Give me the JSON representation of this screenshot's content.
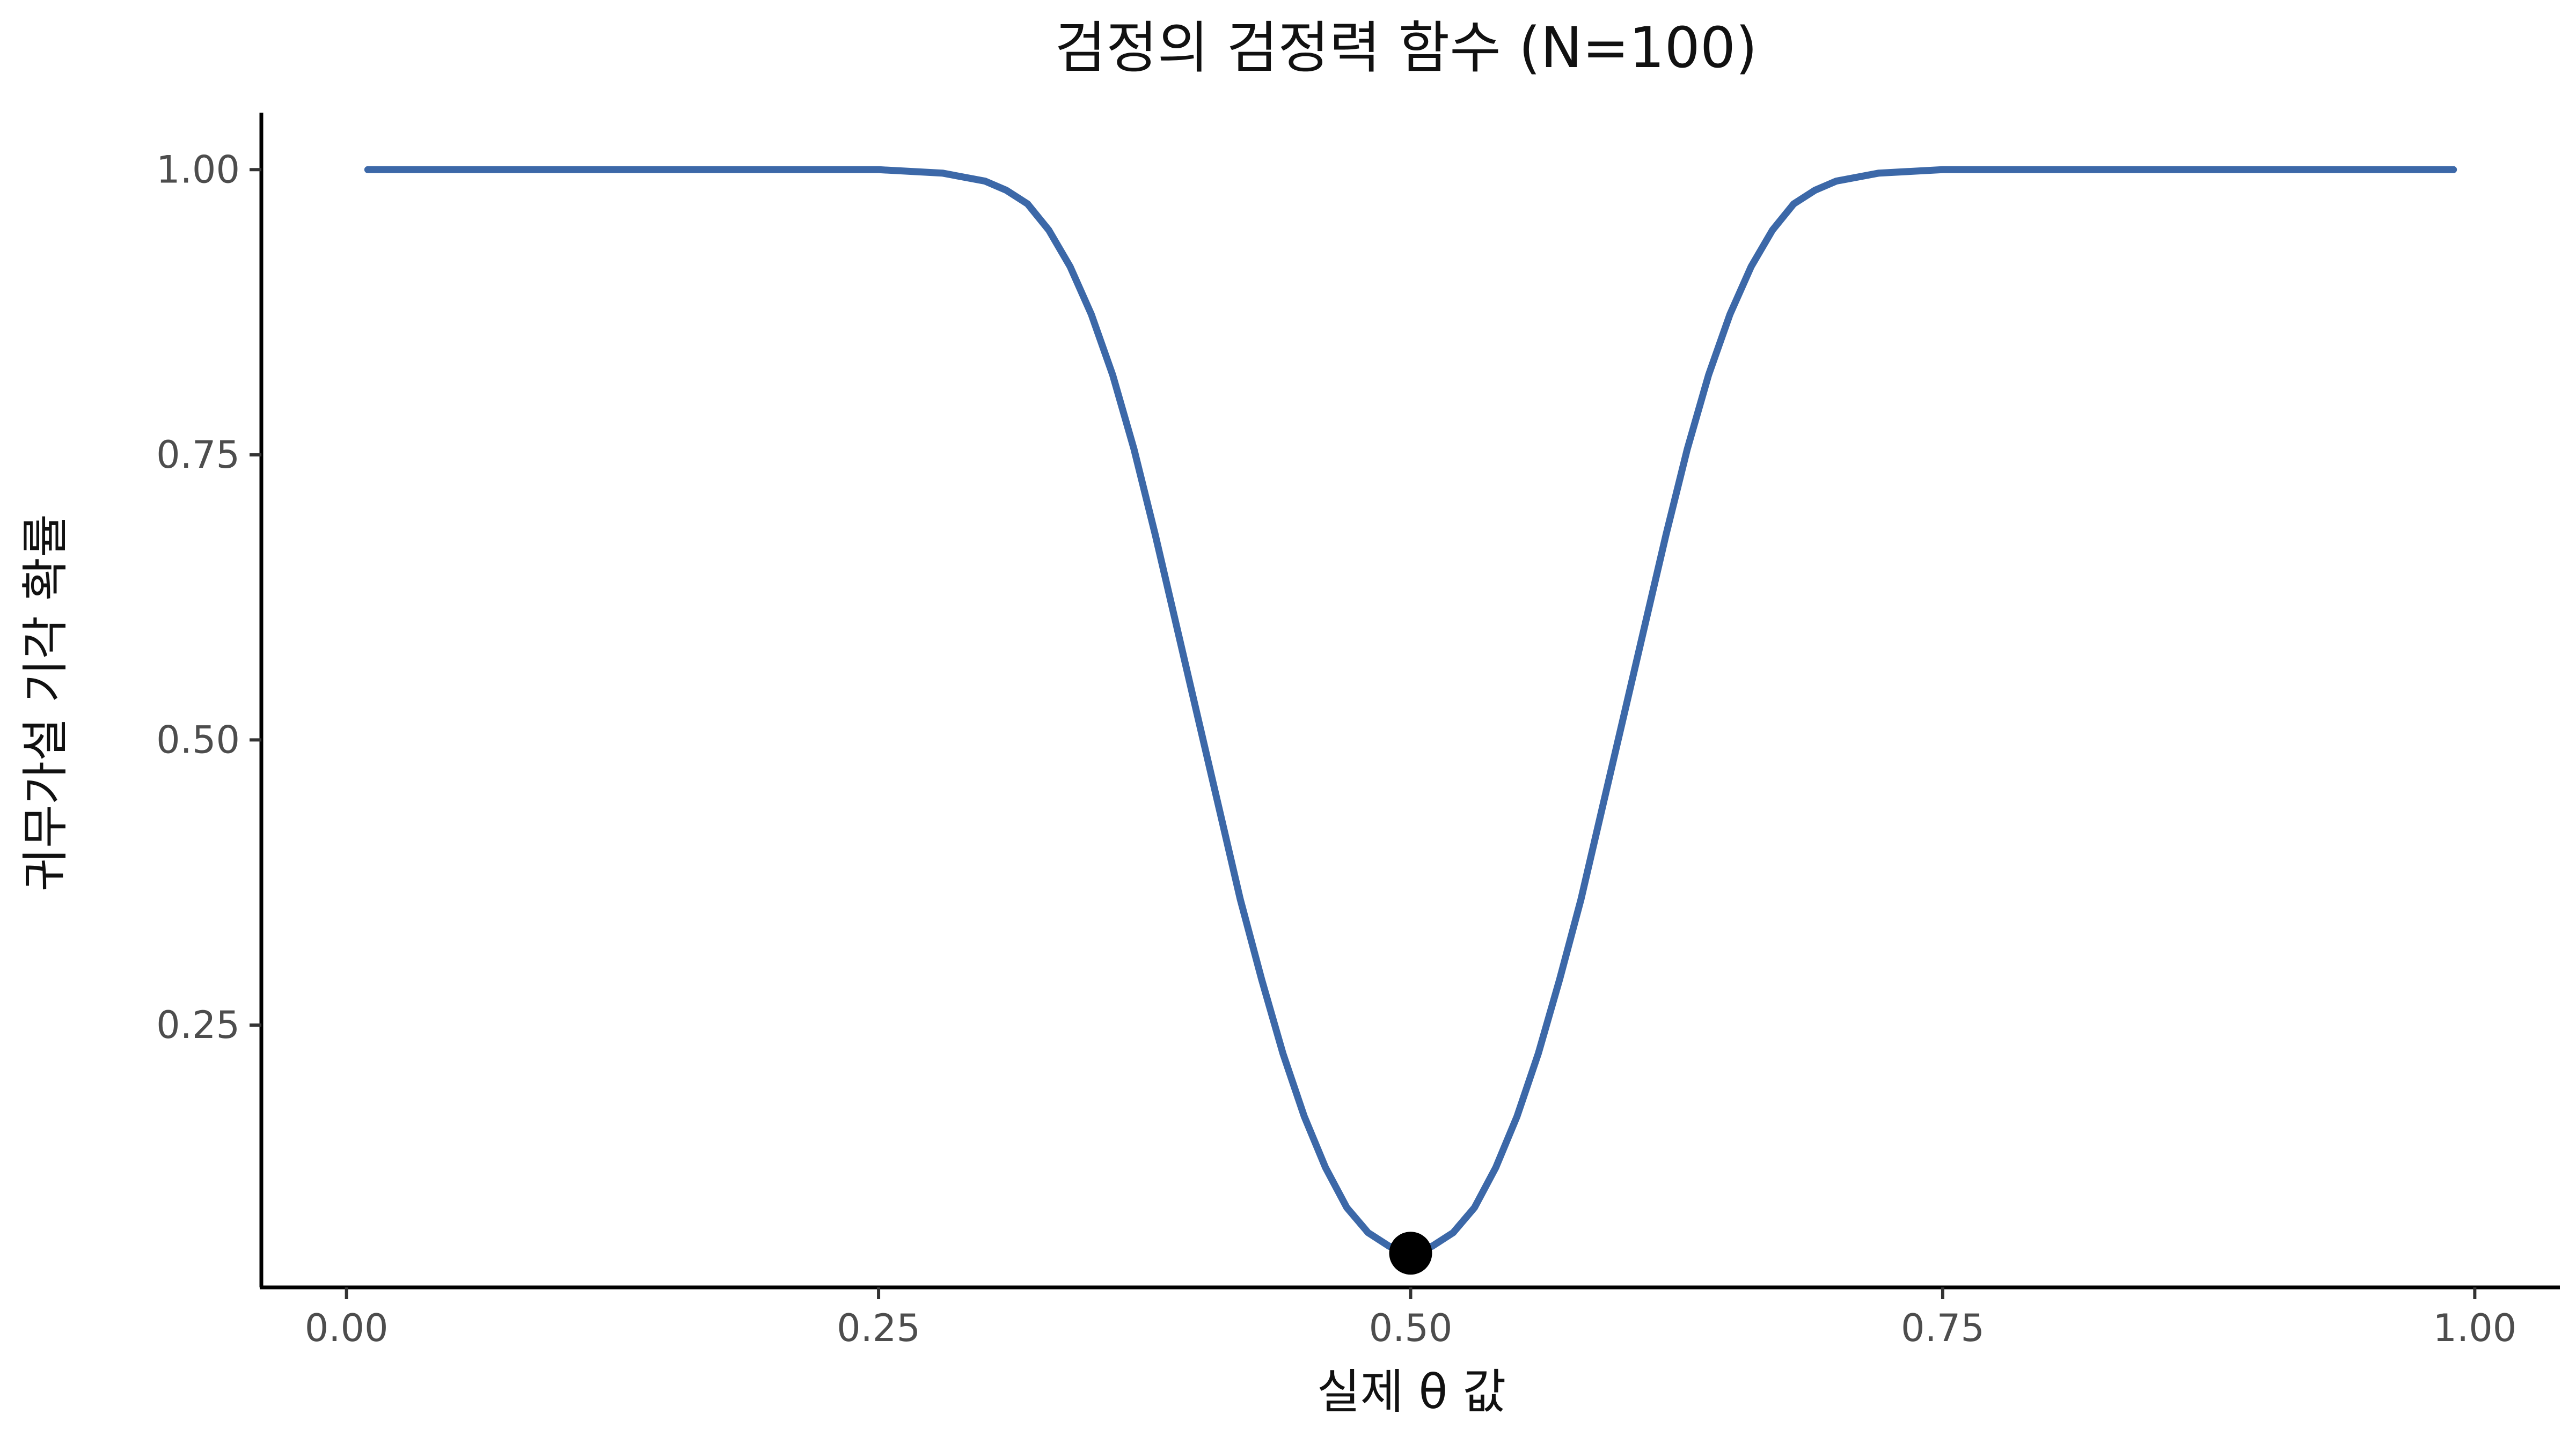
{
  "chart_data": {
    "type": "line",
    "title": "검정의 검정력 함수 (N=100)",
    "xlabel": "실제 θ 값",
    "ylabel": "귀무가설 기각 확률",
    "xlim": [
      -0.04,
      1.04
    ],
    "ylim": [
      0.02,
      1.05
    ],
    "x_ticks": [
      0.0,
      0.25,
      0.5,
      0.75,
      1.0
    ],
    "x_tick_labels": [
      "0.00",
      "0.25",
      "0.50",
      "0.75",
      "1.00"
    ],
    "y_ticks": [
      0.25,
      0.5,
      0.75,
      1.0
    ],
    "y_tick_labels": [
      "0.25",
      "0.50",
      "0.75",
      "1.00"
    ],
    "grid": false,
    "series": [
      {
        "color": "#3c68a8",
        "x": [
          0.01,
          0.05,
          0.1,
          0.15,
          0.2,
          0.25,
          0.28,
          0.3,
          0.31,
          0.32,
          0.33,
          0.34,
          0.35,
          0.36,
          0.37,
          0.38,
          0.39,
          0.4,
          0.41,
          0.42,
          0.43,
          0.44,
          0.45,
          0.46,
          0.47,
          0.48,
          0.49,
          0.5,
          0.51,
          0.52,
          0.53,
          0.54,
          0.55,
          0.56,
          0.57,
          0.58,
          0.59,
          0.6,
          0.61,
          0.62,
          0.63,
          0.64,
          0.65,
          0.66,
          0.67,
          0.68,
          0.69,
          0.7,
          0.72,
          0.75,
          0.8,
          0.85,
          0.9,
          0.95,
          0.99
        ],
        "y": [
          1.0,
          1.0,
          1.0,
          1.0,
          1.0,
          1.0,
          0.997,
          0.99,
          0.982,
          0.97,
          0.947,
          0.915,
          0.873,
          0.82,
          0.755,
          0.68,
          0.6,
          0.52,
          0.44,
          0.36,
          0.29,
          0.225,
          0.17,
          0.125,
          0.09,
          0.068,
          0.056,
          0.055,
          0.056,
          0.068,
          0.09,
          0.125,
          0.17,
          0.225,
          0.29,
          0.36,
          0.44,
          0.52,
          0.6,
          0.68,
          0.755,
          0.82,
          0.873,
          0.915,
          0.947,
          0.97,
          0.982,
          0.99,
          0.997,
          1.0,
          1.0,
          1.0,
          1.0,
          1.0,
          1.0
        ]
      }
    ],
    "highlight_point": {
      "x": 0.5,
      "y": 0.05,
      "color": "#000000"
    }
  }
}
